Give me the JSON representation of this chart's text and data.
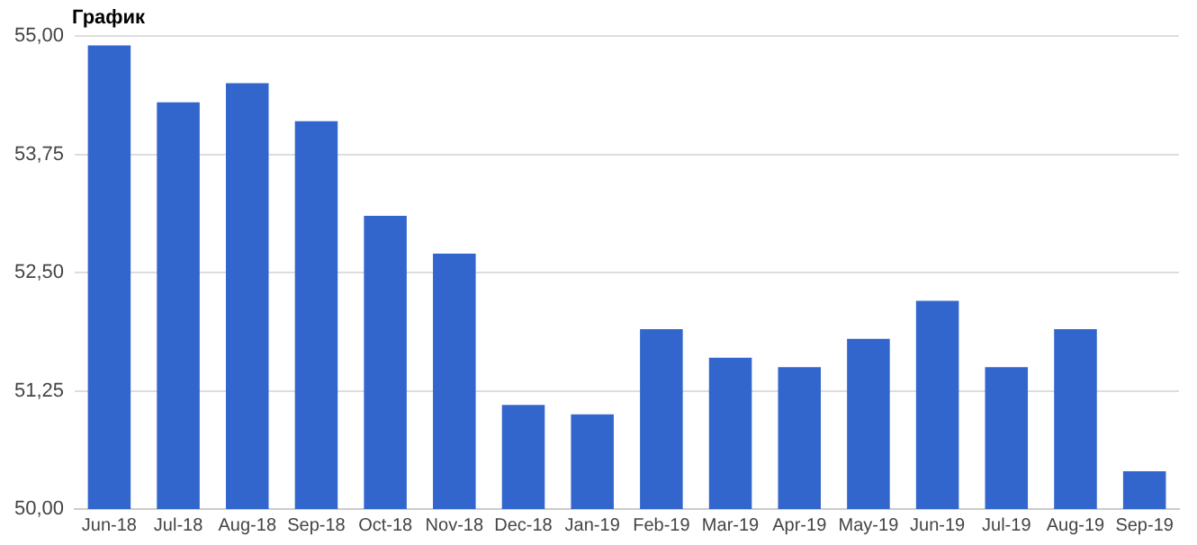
{
  "chart_data": {
    "type": "bar",
    "title": "График",
    "categories": [
      "Jun-18",
      "Jul-18",
      "Aug-18",
      "Sep-18",
      "Oct-18",
      "Nov-18",
      "Dec-18",
      "Jan-19",
      "Feb-19",
      "Mar-19",
      "Apr-19",
      "May-19",
      "Jun-19",
      "Jul-19",
      "Aug-19",
      "Sep-19"
    ],
    "values": [
      54.9,
      54.3,
      54.5,
      54.1,
      53.1,
      52.7,
      51.1,
      51.0,
      51.9,
      51.6,
      51.5,
      51.8,
      52.2,
      51.5,
      51.9,
      50.4
    ],
    "color": "#3366cc",
    "ylim": [
      50,
      55
    ],
    "yticks": [
      {
        "value": 50,
        "label": "50,00"
      },
      {
        "value": 51.25,
        "label": "51,25"
      },
      {
        "value": 52.5,
        "label": "52,50"
      },
      {
        "value": 53.75,
        "label": "53,75"
      },
      {
        "value": 55,
        "label": "55,00"
      }
    ],
    "grid": "y",
    "legend": false
  }
}
